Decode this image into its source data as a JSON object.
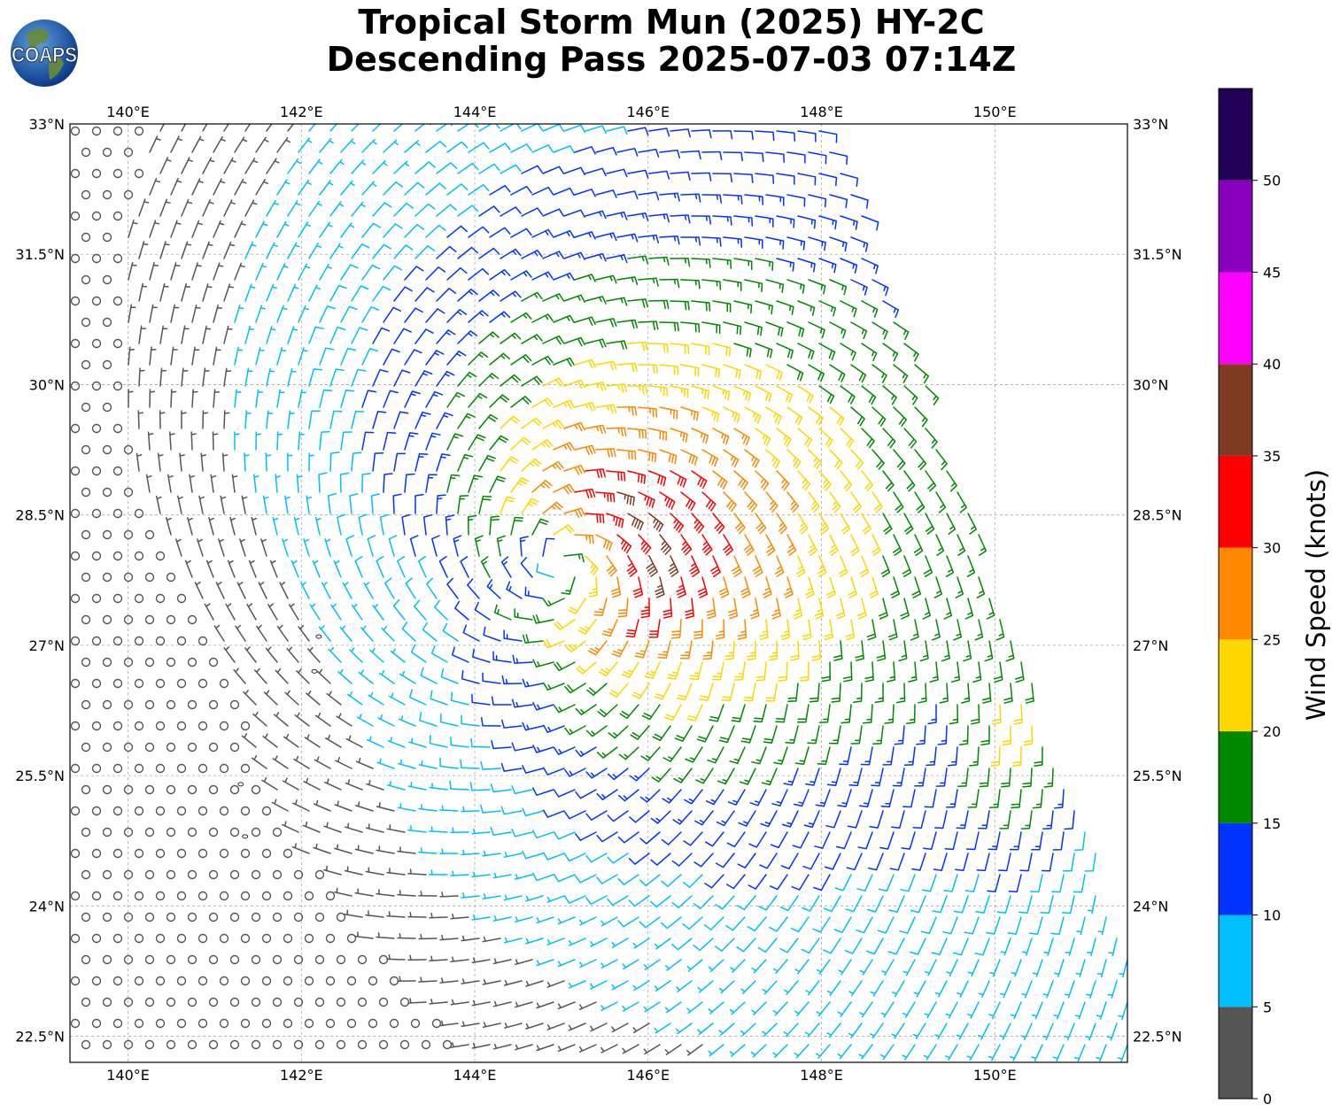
{
  "title": {
    "line1": "Tropical Storm Mun (2025) HY-2C",
    "line2": "Descending Pass 2025-07-03 07:14Z"
  },
  "logo": {
    "text": "COAPS",
    "icon": "globe-icon"
  },
  "map": {
    "lon_range": [
      139.33,
      151.53
    ],
    "lat_range": [
      22.2,
      33.0
    ],
    "lon_ticks": [
      "140°E",
      "142°E",
      "144°E",
      "146°E",
      "148°E",
      "150°E"
    ],
    "lon_tick_values": [
      140,
      142,
      144,
      146,
      148,
      150
    ],
    "lat_ticks": [
      "33°N",
      "31.5°N",
      "30°N",
      "28.5°N",
      "27°N",
      "25.5°N",
      "24°N",
      "22.5°N"
    ],
    "lat_tick_values": [
      33,
      31.5,
      30,
      28.5,
      27,
      25.5,
      24,
      22.5
    ],
    "gridlines": true,
    "storm_center": {
      "lon": 145.0,
      "lat": 27.9
    },
    "swath": {
      "note_top_edge_lon": [
        139.33,
        148.1
      ],
      "right_edge_points": [
        [
          148.1,
          33.0
        ],
        [
          151.53,
          23.6
        ]
      ]
    },
    "islands": [
      {
        "lon": 142.2,
        "lat": 27.1
      },
      {
        "lon": 142.15,
        "lat": 26.7
      },
      {
        "lon": 141.3,
        "lat": 25.4
      },
      {
        "lon": 141.35,
        "lat": 24.8
      }
    ]
  },
  "colorbar": {
    "label": "Wind Speed (knots)",
    "ticks": [
      "0",
      "5",
      "10",
      "15",
      "20",
      "25",
      "30",
      "35",
      "40",
      "45",
      "50"
    ],
    "bins": [
      {
        "min": 0,
        "max": 5,
        "color": "#555555"
      },
      {
        "min": 5,
        "max": 10,
        "color": "#00bfff"
      },
      {
        "min": 10,
        "max": 15,
        "color": "#0033ff"
      },
      {
        "min": 15,
        "max": 20,
        "color": "#008800"
      },
      {
        "min": 20,
        "max": 25,
        "color": "#ffd700"
      },
      {
        "min": 25,
        "max": 30,
        "color": "#ff8800"
      },
      {
        "min": 30,
        "max": 35,
        "color": "#ff0000"
      },
      {
        "min": 35,
        "max": 40,
        "color": "#7f3b22"
      },
      {
        "min": 40,
        "max": 45,
        "color": "#ff00ff"
      },
      {
        "min": 45,
        "max": 50,
        "color": "#8800bb"
      },
      {
        "min": 50,
        "max": 55,
        "color": "#220055"
      }
    ]
  }
}
